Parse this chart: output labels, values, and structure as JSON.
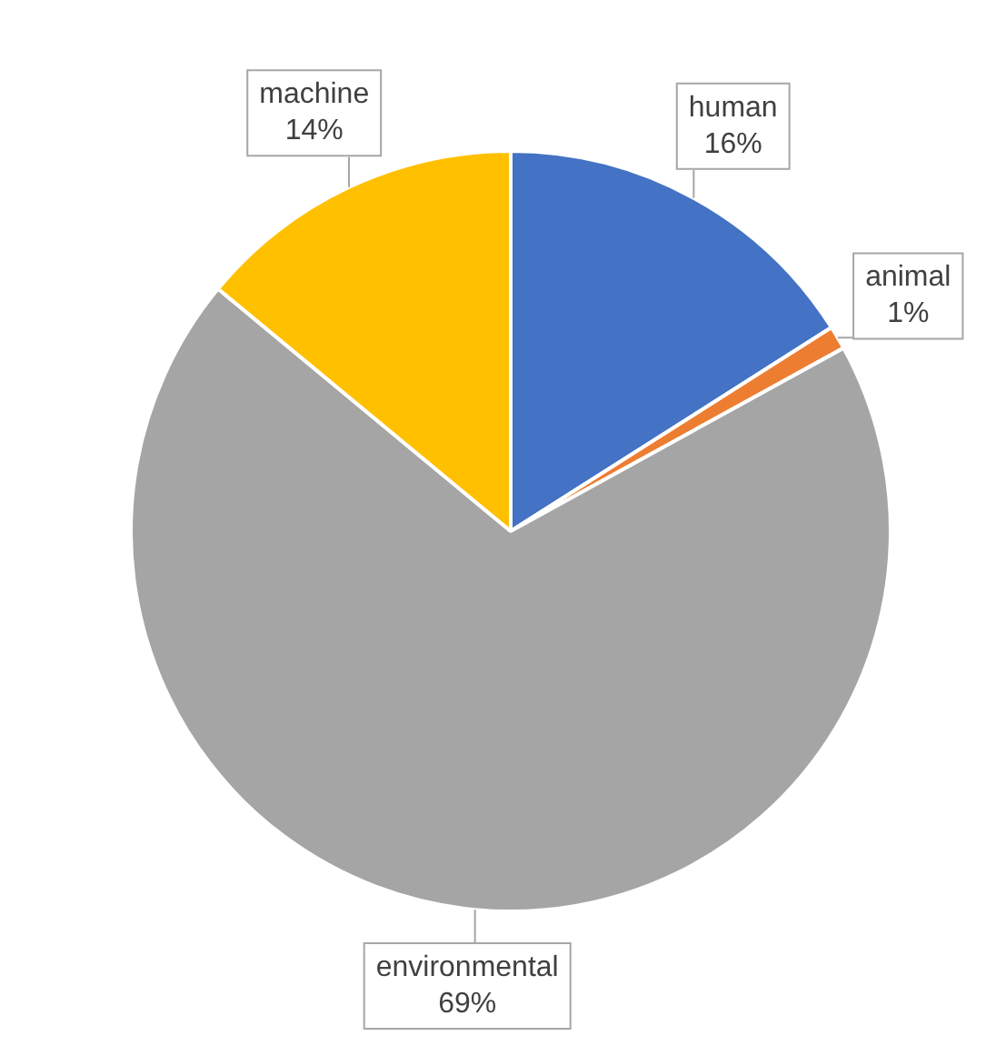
{
  "chart_data": {
    "type": "pie",
    "categories": [
      "human",
      "animal",
      "environmental",
      "machine"
    ],
    "values": [
      16,
      1,
      69,
      14
    ],
    "value_labels": [
      "16%",
      "1%",
      "69%",
      "14%"
    ],
    "colors": [
      "#4472c4",
      "#ed7d31",
      "#a5a5a5",
      "#ffc000"
    ],
    "legend": false
  }
}
